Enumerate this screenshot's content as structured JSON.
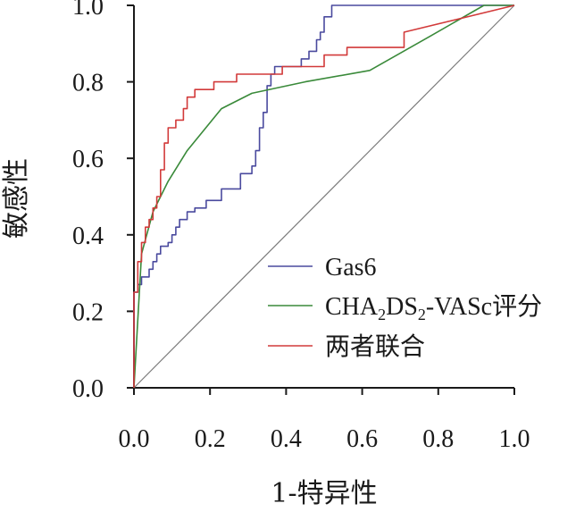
{
  "chart_data": {
    "type": "line",
    "title": "",
    "xlabel": "1-特异性",
    "ylabel": "敏感性",
    "xlim": [
      0,
      1
    ],
    "ylim": [
      0,
      1
    ],
    "x_ticks": [
      "0.0",
      "0.2",
      "0.4",
      "0.6",
      "0.8",
      "1.0"
    ],
    "y_ticks": [
      "0.0",
      "0.2",
      "0.4",
      "0.6",
      "0.8",
      "1.0"
    ],
    "legend_position": "bottom-right",
    "reference_line": {
      "name": "diagonal",
      "color": "#7a7a7a",
      "x": [
        0,
        1
      ],
      "y": [
        0,
        1
      ]
    },
    "series": [
      {
        "name": "Gas6",
        "label_main": "Gas6",
        "color": "#4a4a9e",
        "x": [
          0.0,
          0.0,
          0.01,
          0.01,
          0.02,
          0.02,
          0.04,
          0.04,
          0.05,
          0.05,
          0.06,
          0.06,
          0.07,
          0.07,
          0.09,
          0.09,
          0.1,
          0.1,
          0.11,
          0.11,
          0.12,
          0.12,
          0.14,
          0.14,
          0.16,
          0.16,
          0.19,
          0.19,
          0.23,
          0.23,
          0.28,
          0.28,
          0.31,
          0.31,
          0.32,
          0.32,
          0.33,
          0.33,
          0.34,
          0.34,
          0.35,
          0.35,
          0.36,
          0.36,
          0.37,
          0.37,
          0.38,
          0.38,
          0.44,
          0.44,
          0.46,
          0.46,
          0.48,
          0.48,
          0.49,
          0.49,
          0.5,
          0.5,
          0.52,
          0.52,
          0.53,
          0.53,
          0.55,
          0.55,
          0.7,
          0.7,
          1.0
        ],
        "y": [
          0.0,
          0.25,
          0.25,
          0.27,
          0.27,
          0.29,
          0.29,
          0.31,
          0.31,
          0.33,
          0.33,
          0.35,
          0.35,
          0.37,
          0.37,
          0.38,
          0.38,
          0.4,
          0.4,
          0.42,
          0.42,
          0.44,
          0.44,
          0.46,
          0.46,
          0.47,
          0.47,
          0.49,
          0.49,
          0.52,
          0.52,
          0.56,
          0.56,
          0.58,
          0.58,
          0.62,
          0.62,
          0.68,
          0.68,
          0.72,
          0.72,
          0.79,
          0.79,
          0.82,
          0.82,
          0.84,
          0.84,
          0.84,
          0.84,
          0.86,
          0.86,
          0.88,
          0.88,
          0.91,
          0.91,
          0.93,
          0.93,
          0.97,
          0.97,
          1.0,
          1.0,
          1.0,
          1.0,
          1.0,
          1.0,
          1.0,
          1.0
        ]
      },
      {
        "name": "CHA2DS2-VASc评分",
        "label_main": "CHA",
        "label_parts": [
          "CHA",
          "2",
          "DS",
          "2",
          "-VASc",
          "评分"
        ],
        "color": "#3a8a3a",
        "x": [
          0.0,
          0.02,
          0.05,
          0.09,
          0.14,
          0.23,
          0.31,
          0.45,
          0.62,
          0.78,
          0.92,
          1.0
        ],
        "y": [
          0.0,
          0.35,
          0.46,
          0.54,
          0.62,
          0.73,
          0.77,
          0.8,
          0.83,
          0.92,
          1.0,
          1.0
        ]
      },
      {
        "name": "两者联合",
        "label_main": "两者联合",
        "color": "#d23a3a",
        "x": [
          0.0,
          0.0,
          0.01,
          0.01,
          0.02,
          0.02,
          0.03,
          0.03,
          0.04,
          0.04,
          0.05,
          0.05,
          0.06,
          0.06,
          0.07,
          0.07,
          0.08,
          0.08,
          0.09,
          0.09,
          0.11,
          0.11,
          0.13,
          0.13,
          0.14,
          0.14,
          0.16,
          0.16,
          0.21,
          0.21,
          0.27,
          0.27,
          0.39,
          0.39,
          0.5,
          0.5,
          0.56,
          0.56,
          0.71,
          0.71,
          1.0
        ],
        "y": [
          0.0,
          0.25,
          0.25,
          0.33,
          0.33,
          0.38,
          0.38,
          0.42,
          0.42,
          0.44,
          0.44,
          0.47,
          0.47,
          0.5,
          0.5,
          0.57,
          0.57,
          0.64,
          0.64,
          0.68,
          0.68,
          0.7,
          0.7,
          0.73,
          0.73,
          0.76,
          0.76,
          0.78,
          0.78,
          0.8,
          0.8,
          0.82,
          0.82,
          0.84,
          0.84,
          0.87,
          0.87,
          0.89,
          0.89,
          0.93,
          1.0
        ]
      }
    ]
  }
}
